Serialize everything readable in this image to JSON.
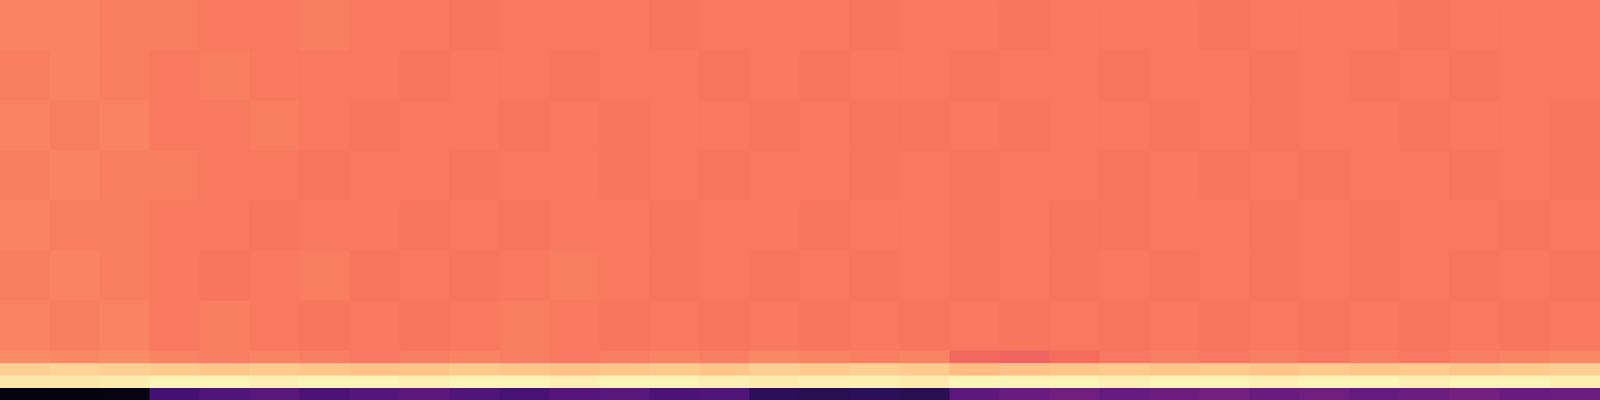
{
  "chart_data": {
    "type": "heatmap",
    "xlim": [
      0,
      32
    ],
    "ylim": [
      0,
      32
    ],
    "tick_labels": false,
    "zlim": [
      0,
      1
    ],
    "xbins": [
      0,
      1,
      2,
      3,
      4,
      5,
      6,
      7,
      8,
      9,
      10,
      11,
      12,
      13,
      14,
      15,
      16,
      17,
      18,
      19,
      20,
      21,
      22,
      23,
      24,
      25,
      26,
      27,
      28,
      29,
      30,
      31,
      32
    ],
    "ybins": [
      0,
      1,
      2,
      3,
      4,
      8,
      12,
      16,
      20,
      24,
      28,
      32
    ],
    "cells": [
      [
        0.02,
        0.02,
        0.03,
        0.22,
        0.25,
        0.27,
        0.24,
        0.26,
        0.28,
        0.25,
        0.23,
        0.26,
        0.27,
        0.24,
        0.25,
        0.16,
        0.15,
        0.16,
        0.15,
        0.28,
        0.31,
        0.33,
        0.3,
        0.32,
        0.34,
        0.31,
        0.33,
        0.3,
        0.32,
        0.34,
        0.31,
        0.32
      ],
      [
        0.95,
        0.95,
        0.96,
        0.98,
        0.98,
        0.97,
        0.98,
        0.98,
        0.97,
        0.98,
        0.98,
        0.97,
        0.98,
        0.98,
        0.97,
        0.96,
        0.97,
        0.97,
        0.96,
        0.98,
        0.98,
        0.98,
        0.97,
        0.98,
        0.98,
        0.97,
        0.98,
        0.98,
        0.97,
        0.98,
        0.98,
        0.97
      ],
      [
        0.9,
        0.91,
        0.9,
        0.89,
        0.88,
        0.89,
        0.88,
        0.87,
        0.88,
        0.89,
        0.88,
        0.87,
        0.88,
        0.89,
        0.88,
        0.9,
        0.89,
        0.9,
        0.89,
        0.86,
        0.87,
        0.88,
        0.89,
        0.88,
        0.89,
        0.88,
        0.89,
        0.88,
        0.89,
        0.88,
        0.89,
        0.9
      ],
      [
        0.76,
        0.75,
        0.76,
        0.74,
        0.73,
        0.74,
        0.73,
        0.72,
        0.73,
        0.74,
        0.73,
        0.72,
        0.73,
        0.74,
        0.73,
        0.75,
        0.74,
        0.73,
        0.74,
        0.68,
        0.67,
        0.69,
        0.72,
        0.73,
        0.72,
        0.73,
        0.72,
        0.73,
        0.72,
        0.73,
        0.74,
        0.75
      ],
      [
        0.74,
        0.73,
        0.74,
        0.72,
        0.73,
        0.72,
        0.71,
        0.72,
        0.71,
        0.72,
        0.73,
        0.72,
        0.71,
        0.72,
        0.71,
        0.72,
        0.71,
        0.72,
        0.71,
        0.72,
        0.71,
        0.72,
        0.71,
        0.72,
        0.71,
        0.72,
        0.71,
        0.72,
        0.71,
        0.72,
        0.71,
        0.72
      ],
      [
        0.73,
        0.74,
        0.73,
        0.72,
        0.71,
        0.72,
        0.73,
        0.71,
        0.72,
        0.71,
        0.72,
        0.73,
        0.72,
        0.71,
        0.72,
        0.71,
        0.72,
        0.71,
        0.72,
        0.71,
        0.72,
        0.71,
        0.72,
        0.71,
        0.72,
        0.71,
        0.72,
        0.71,
        0.72,
        0.71,
        0.72,
        0.71
      ],
      [
        0.74,
        0.73,
        0.73,
        0.72,
        0.72,
        0.71,
        0.72,
        0.72,
        0.71,
        0.72,
        0.71,
        0.72,
        0.72,
        0.71,
        0.72,
        0.72,
        0.71,
        0.72,
        0.72,
        0.71,
        0.72,
        0.71,
        0.71,
        0.72,
        0.72,
        0.71,
        0.72,
        0.71,
        0.72,
        0.72,
        0.71,
        0.72
      ],
      [
        0.73,
        0.74,
        0.73,
        0.73,
        0.72,
        0.72,
        0.71,
        0.72,
        0.72,
        0.71,
        0.72,
        0.72,
        0.71,
        0.72,
        0.71,
        0.72,
        0.72,
        0.71,
        0.72,
        0.71,
        0.72,
        0.72,
        0.71,
        0.72,
        0.71,
        0.72,
        0.71,
        0.72,
        0.72,
        0.71,
        0.72,
        0.71
      ],
      [
        0.74,
        0.73,
        0.74,
        0.72,
        0.72,
        0.73,
        0.72,
        0.71,
        0.72,
        0.72,
        0.71,
        0.72,
        0.71,
        0.72,
        0.72,
        0.71,
        0.72,
        0.71,
        0.71,
        0.72,
        0.71,
        0.72,
        0.72,
        0.71,
        0.72,
        0.71,
        0.72,
        0.72,
        0.71,
        0.72,
        0.72,
        0.71
      ],
      [
        0.73,
        0.74,
        0.73,
        0.72,
        0.73,
        0.72,
        0.72,
        0.72,
        0.71,
        0.72,
        0.72,
        0.71,
        0.72,
        0.72,
        0.71,
        0.72,
        0.71,
        0.72,
        0.72,
        0.71,
        0.72,
        0.72,
        0.71,
        0.72,
        0.72,
        0.71,
        0.72,
        0.71,
        0.72,
        0.71,
        0.72,
        0.72
      ],
      [
        0.74,
        0.74,
        0.73,
        0.73,
        0.72,
        0.72,
        0.73,
        0.72,
        0.72,
        0.71,
        0.72,
        0.72,
        0.72,
        0.71,
        0.72,
        0.72,
        0.72,
        0.71,
        0.72,
        0.72,
        0.71,
        0.72,
        0.72,
        0.72,
        0.71,
        0.72,
        0.72,
        0.72,
        0.71,
        0.72,
        0.72,
        0.72
      ]
    ]
  }
}
